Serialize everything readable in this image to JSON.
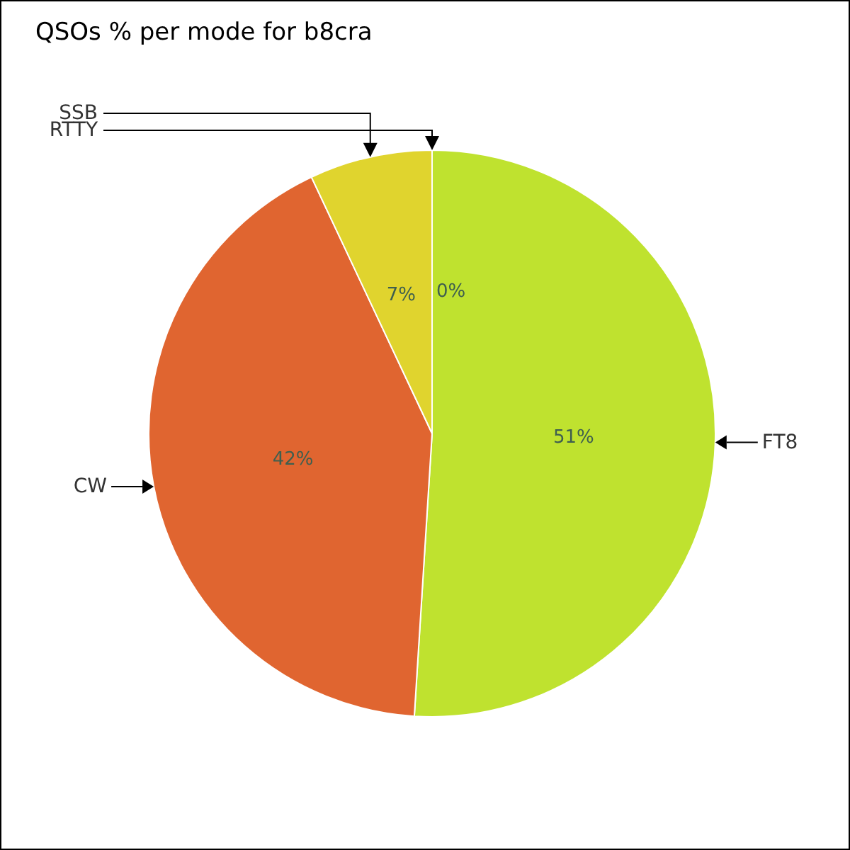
{
  "chart_data": {
    "type": "pie",
    "title": "QSOs % per mode for b8cra",
    "categories": [
      "FT8",
      "CW",
      "SSB",
      "RTTY"
    ],
    "values": [
      51,
      42,
      7,
      0
    ],
    "value_labels": [
      "51%",
      "42%",
      "7%",
      "0%"
    ],
    "colors": [
      "#bfe22f",
      "#e06530",
      "#e0d42e",
      "#e6d92c"
    ],
    "legend": false
  }
}
